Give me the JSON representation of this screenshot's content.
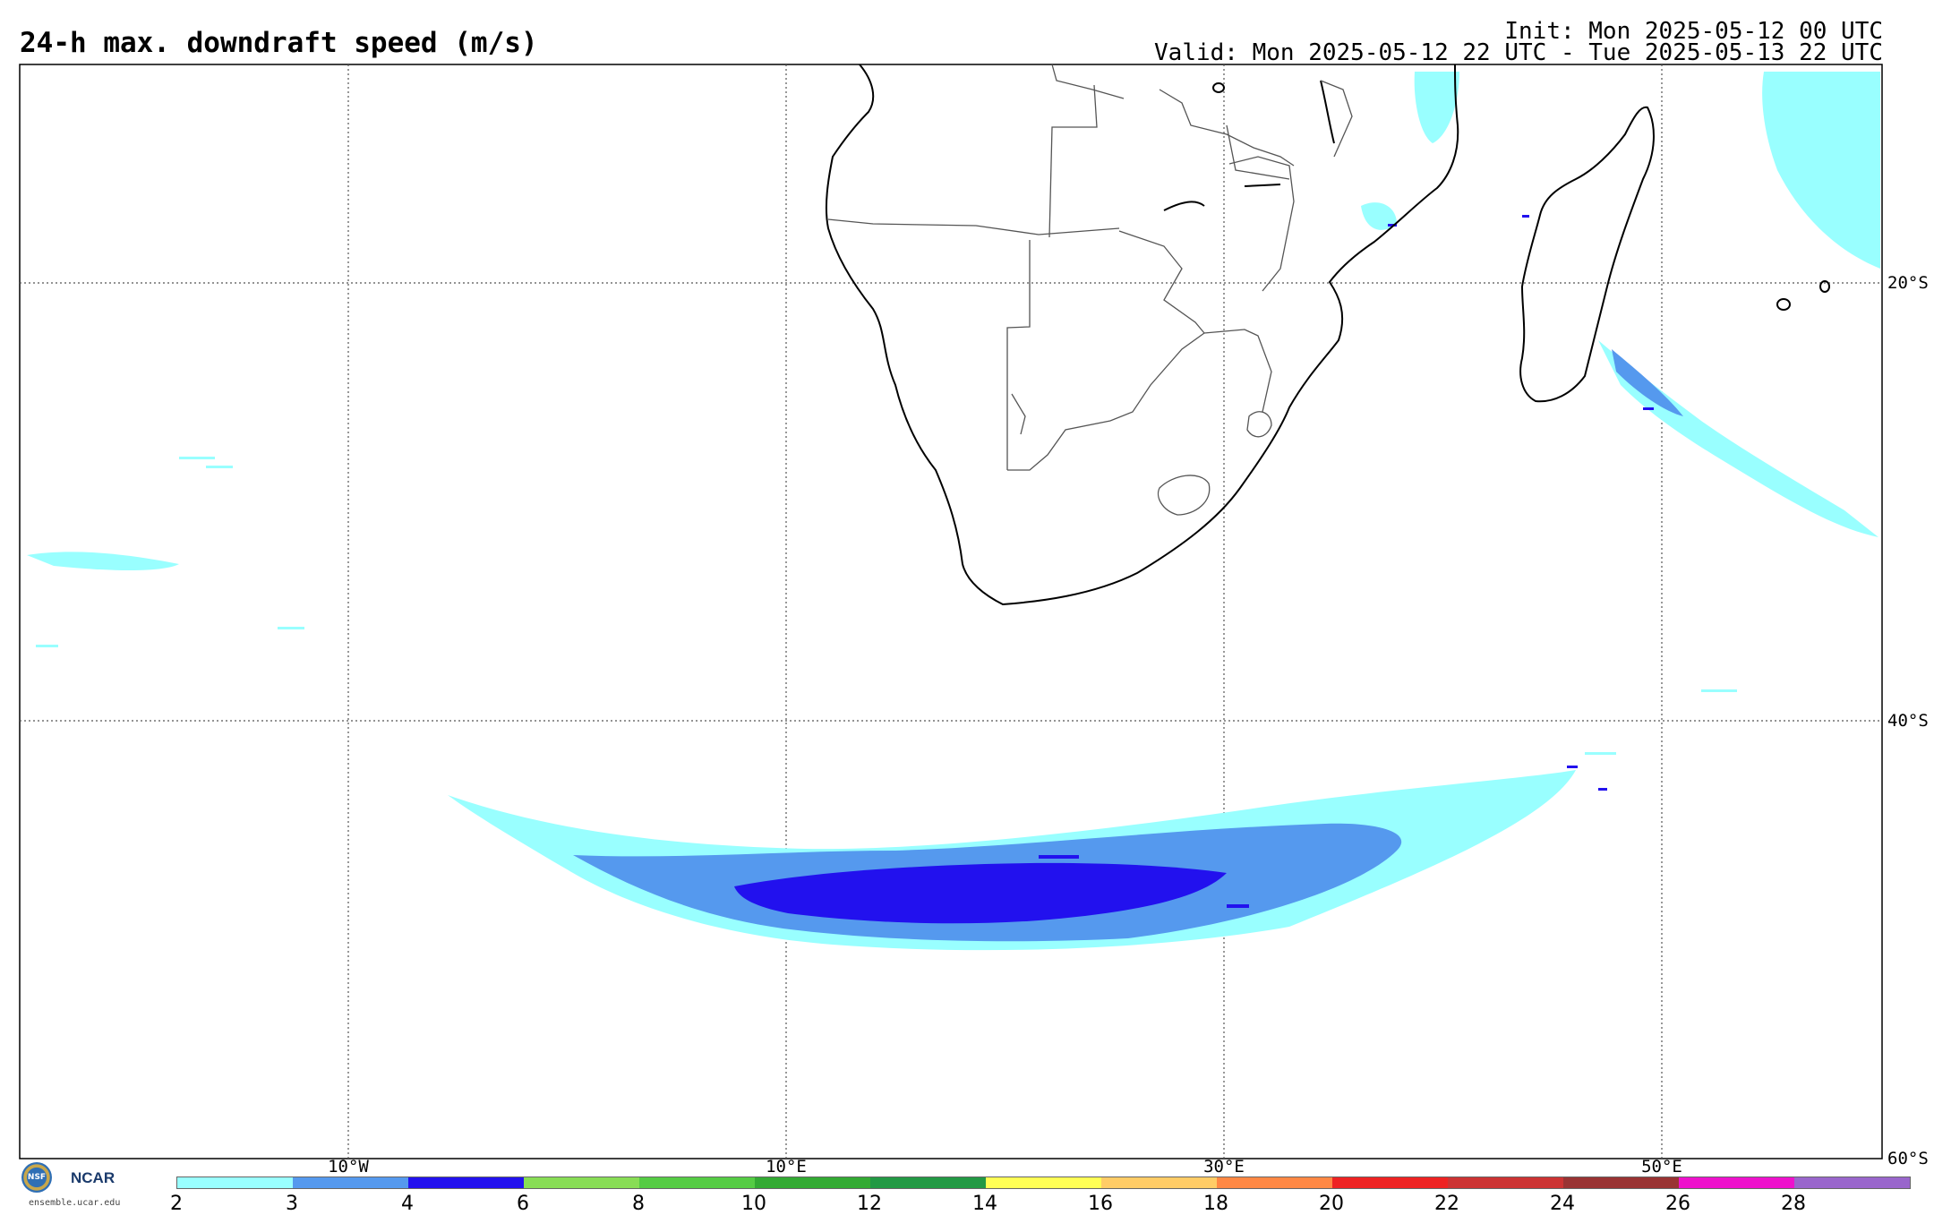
{
  "header": {
    "title": "24-h max. downdraft speed (m/s)",
    "init": "Init: Mon 2025-05-12 00 UTC",
    "valid": "Valid: Mon 2025-05-12 22 UTC - Tue 2025-05-13 22 UTC"
  },
  "map": {
    "lat_labels": [
      "20°S",
      "40°S",
      "60°S"
    ],
    "lon_labels": [
      "10°W",
      "10°E",
      "30°E",
      "50°E"
    ],
    "land_color": "#ffffff",
    "ocean_color": "#ffffff",
    "coast_color": "#000000",
    "border_color": "#555555",
    "grid_color": "#555555"
  },
  "colorbar": {
    "tick_labels": [
      "2",
      "3",
      "4",
      "6",
      "8",
      "10",
      "12",
      "14",
      "16",
      "18",
      "20",
      "22",
      "24",
      "26",
      "28"
    ],
    "colors": [
      "#99ffff",
      "#5599ee",
      "#2211ee",
      "#88dd55",
      "#55cc44",
      "#33aa33",
      "#229944",
      "#ffff55",
      "#ffcc66",
      "#ff8844",
      "#ee2222",
      "#cc3333",
      "#993333",
      "#ee11cc",
      "#9966cc"
    ]
  },
  "logo": {
    "nsf": "NSF",
    "ncar": "NCAR",
    "url": "ensemble.ucar.edu"
  }
}
